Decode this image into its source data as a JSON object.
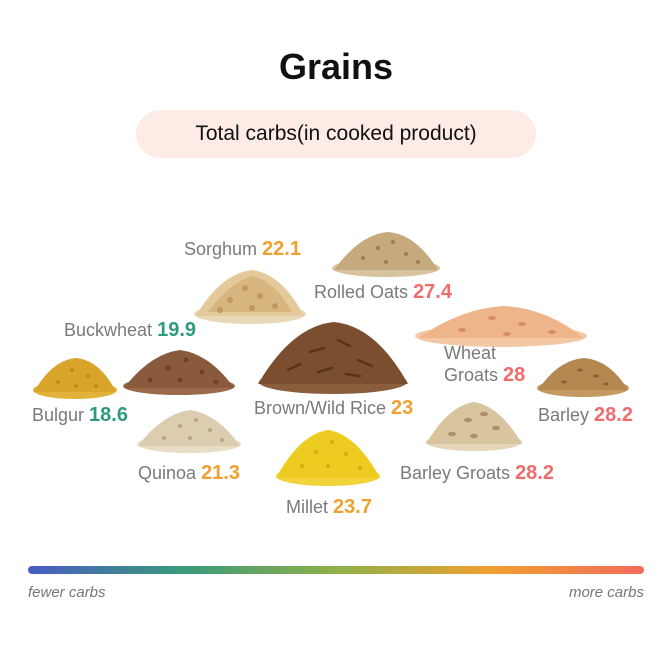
{
  "title": "Grains",
  "subtitle": "Total carbs(in cooked product)",
  "colors": {
    "low": "#2e9a7e",
    "mid": "#f0a030",
    "high": "#f26b6b",
    "gradient": [
      "#4a5bc4",
      "#3a9a7a",
      "#8fb04a",
      "#f0a030",
      "#f26b5b"
    ]
  },
  "chart_data": {
    "type": "table",
    "title": "Grains",
    "subtitle": "Total carbs(in cooked product)",
    "categories": [
      "Sorghum",
      "Rolled Oats",
      "Buckwheat",
      "Wheat Groats",
      "Bulgur",
      "Brown/Wild Rice",
      "Barley",
      "Quinoa",
      "Barley Groats",
      "Millet"
    ],
    "values": [
      22.1,
      27.4,
      19.9,
      28,
      18.6,
      23,
      28.2,
      21.3,
      28.2,
      23.7
    ],
    "value_colors": [
      "mid",
      "high",
      "low",
      "high",
      "low",
      "mid",
      "high",
      "mid",
      "high",
      "mid"
    ],
    "scale": {
      "low_label": "fewer carbs",
      "high_label": "more carbs"
    }
  },
  "grains": [
    {
      "label": "Sorghum",
      "value": "22.1",
      "tone": "mid"
    },
    {
      "label": "Rolled Oats",
      "value": "27.4",
      "tone": "high"
    },
    {
      "label": "Buckwheat",
      "value": "19.9",
      "tone": "low"
    },
    {
      "label_line1": "Wheat",
      "label_line2": "Groats",
      "value": "28",
      "tone": "high"
    },
    {
      "label": "Bulgur",
      "value": "18.6",
      "tone": "low"
    },
    {
      "label": "Brown/Wild Rice",
      "value": "23",
      "tone": "mid"
    },
    {
      "label": "Barley",
      "value": "28.2",
      "tone": "high"
    },
    {
      "label": "Quinoa",
      "value": "21.3",
      "tone": "mid"
    },
    {
      "label": "Barley Groats",
      "value": "28.2",
      "tone": "high"
    },
    {
      "label": "Millet",
      "value": "23.7",
      "tone": "mid"
    }
  ],
  "scale": {
    "low_label": "fewer carbs",
    "high_label": "more carbs"
  },
  "icons": {
    "sorghum": "sorghum-pile-icon",
    "rolled_oats": "rolled-oats-pile-icon",
    "buckwheat": "buckwheat-pile-icon",
    "wheat_groats": "wheat-groats-pile-icon",
    "bulgur": "bulgur-pile-icon",
    "brown_wild_rice": "brown-wild-rice-pile-icon",
    "barley": "barley-pile-icon",
    "quinoa": "quinoa-pile-icon",
    "barley_groats": "barley-groats-pile-icon",
    "millet": "millet-pile-icon"
  }
}
